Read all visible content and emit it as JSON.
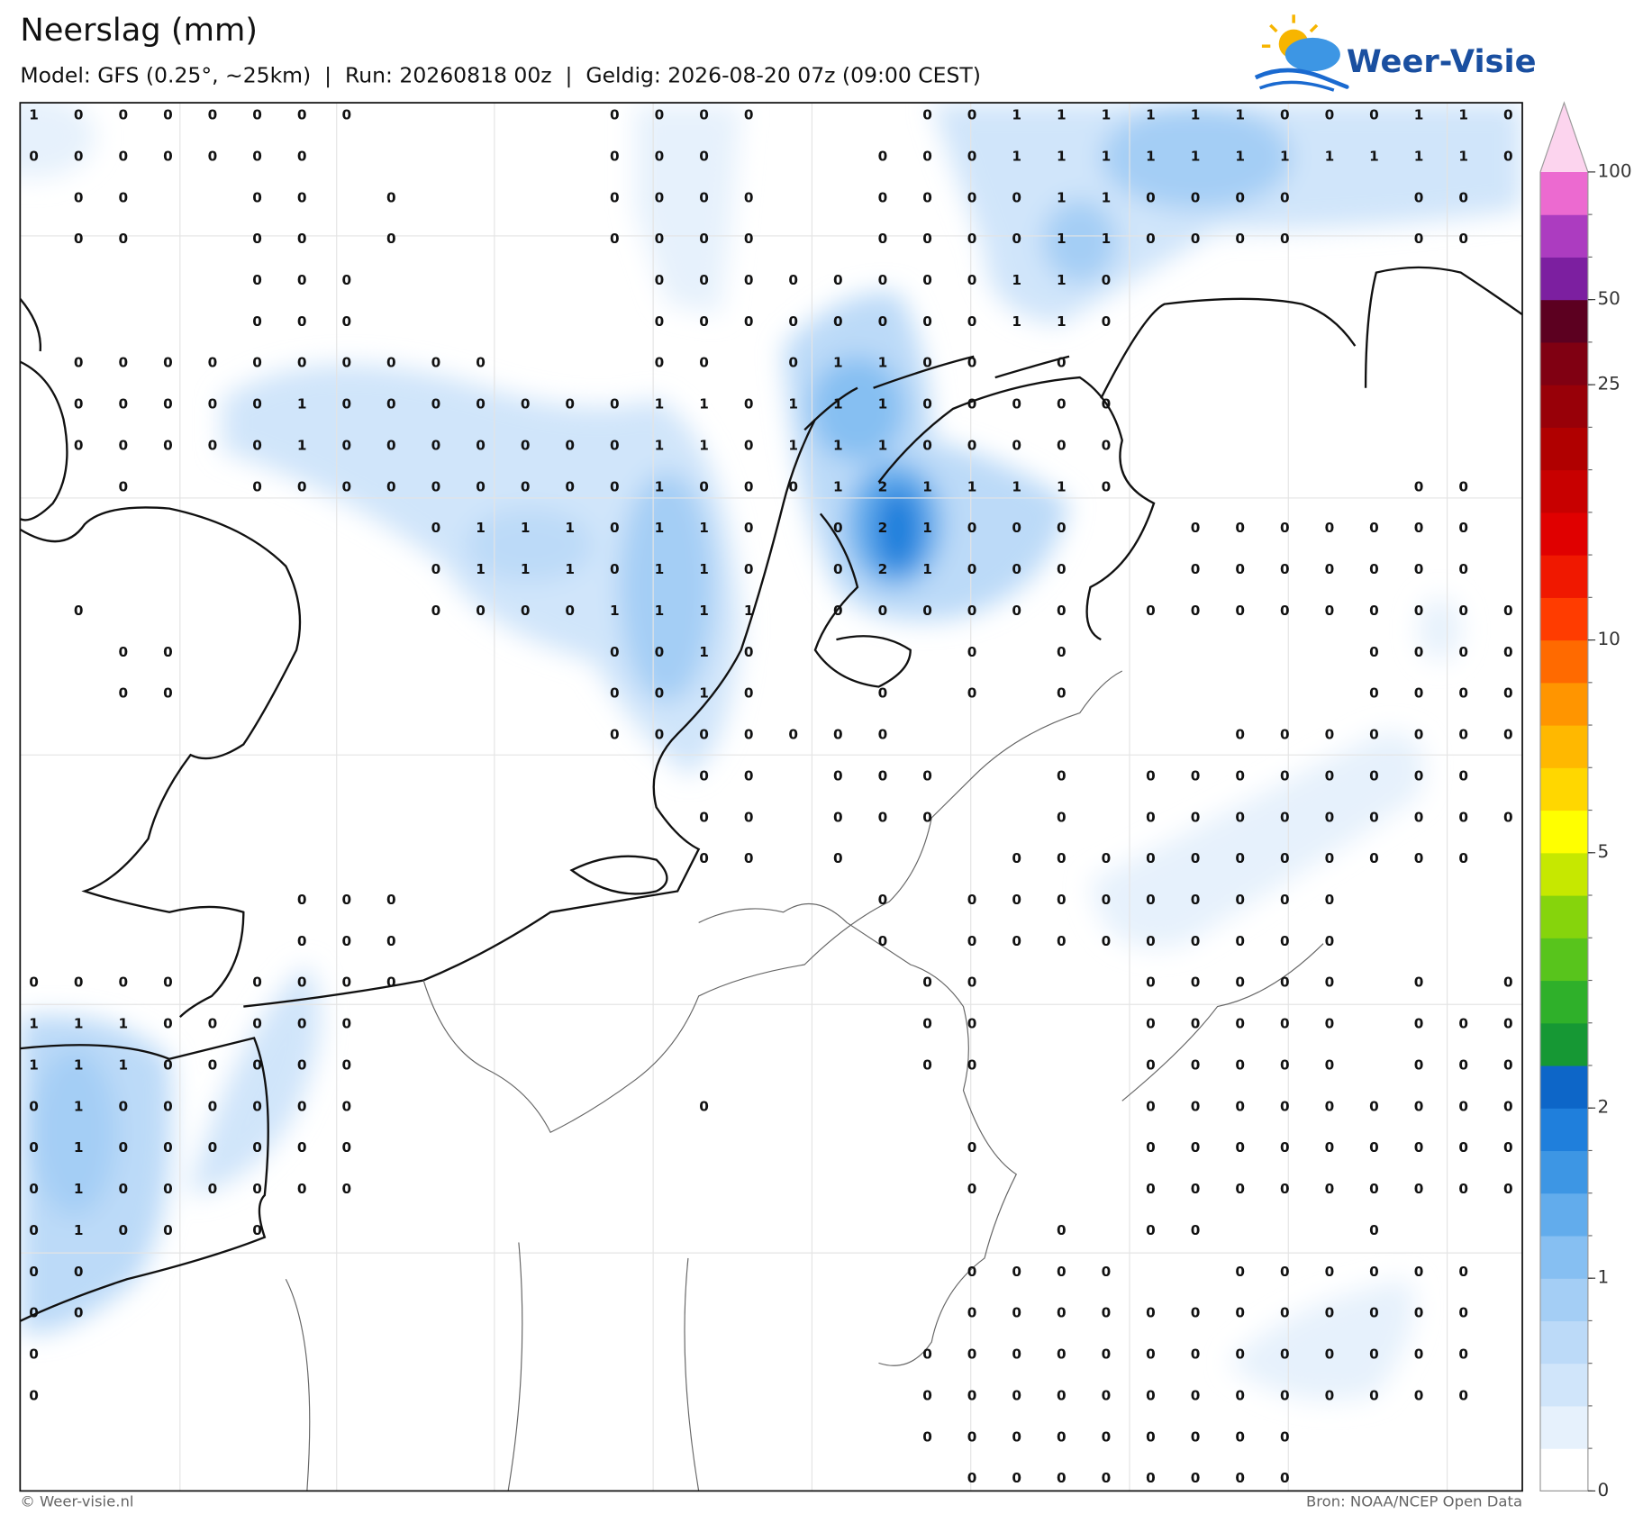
{
  "header": {
    "title": "Neerslag (mm)",
    "subtitle": "Model: GFS (0.25°, ~25km)  |  Run: 20260818 00z  |  Geldig: 2026-08-20 07z (09:00 CEST)",
    "logo": "Weer-Visie"
  },
  "colorbar": {
    "ticks": [
      0,
      1,
      2,
      5,
      10,
      25,
      50,
      100
    ],
    "colors": [
      "#ffffff",
      "#e6f1fc",
      "#d0e5fa",
      "#bcdaf8",
      "#a4cef5",
      "#86bff2",
      "#62acec",
      "#3d96e4",
      "#1f7fdc",
      "#0d66c8",
      "#169834",
      "#2fb02a",
      "#58c41c",
      "#86d40c",
      "#c6e800",
      "#ffff00",
      "#ffd700",
      "#ffb800",
      "#ff9500",
      "#ff6a00",
      "#ff3c00",
      "#f01800",
      "#e00000",
      "#c80000",
      "#b00000",
      "#980008",
      "#800012",
      "#5c0020",
      "#7c1fa0",
      "#ac3cc0",
      "#ec6ad0"
    ],
    "extend_color": "#fcd4ee"
  },
  "grid": {
    "rows": [
      [
        1,
        0,
        0,
        0,
        0,
        0,
        0,
        0,
        null,
        null,
        null,
        null,
        null,
        0,
        0,
        0,
        0,
        null,
        null,
        null,
        0,
        0,
        1,
        1,
        1,
        1,
        1,
        1,
        0,
        0,
        0,
        1,
        1,
        0
      ],
      [
        0,
        0,
        0,
        0,
        0,
        0,
        0,
        null,
        null,
        null,
        null,
        null,
        null,
        0,
        0,
        0,
        null,
        null,
        null,
        0,
        0,
        0,
        1,
        1,
        1,
        1,
        1,
        1,
        1,
        1,
        1,
        1,
        1,
        0
      ],
      [
        null,
        0,
        0,
        null,
        null,
        0,
        0,
        null,
        0,
        null,
        null,
        null,
        null,
        0,
        0,
        0,
        0,
        null,
        null,
        0,
        0,
        0,
        0,
        1,
        1,
        0,
        0,
        0,
        0,
        null,
        null,
        0,
        0,
        null
      ],
      [
        null,
        0,
        0,
        null,
        null,
        0,
        0,
        null,
        0,
        null,
        null,
        null,
        null,
        0,
        0,
        0,
        0,
        null,
        null,
        0,
        0,
        0,
        0,
        1,
        1,
        0,
        0,
        0,
        0,
        null,
        null,
        0,
        0,
        null
      ],
      [
        null,
        null,
        null,
        null,
        null,
        0,
        0,
        0,
        null,
        null,
        null,
        null,
        null,
        null,
        0,
        0,
        0,
        0,
        0,
        0,
        0,
        0,
        1,
        1,
        0,
        null,
        null,
        null,
        null,
        null,
        null,
        null,
        null,
        null
      ],
      [
        null,
        null,
        null,
        null,
        null,
        0,
        0,
        0,
        null,
        null,
        null,
        null,
        null,
        null,
        0,
        0,
        0,
        0,
        0,
        0,
        0,
        0,
        1,
        1,
        0,
        null,
        null,
        null,
        null,
        null,
        null,
        null,
        null,
        null
      ],
      [
        null,
        0,
        0,
        0,
        0,
        0,
        0,
        0,
        0,
        0,
        0,
        null,
        null,
        null,
        0,
        0,
        null,
        0,
        1,
        1,
        0,
        0,
        null,
        0,
        null,
        null,
        null,
        null,
        null,
        null,
        null,
        null,
        null,
        null
      ],
      [
        null,
        0,
        0,
        0,
        0,
        0,
        1,
        0,
        0,
        0,
        0,
        0,
        0,
        0,
        1,
        1,
        0,
        1,
        1,
        1,
        0,
        0,
        0,
        0,
        0,
        null,
        null,
        null,
        null,
        null,
        null,
        null,
        null,
        null
      ],
      [
        null,
        0,
        0,
        0,
        0,
        0,
        1,
        0,
        0,
        0,
        0,
        0,
        0,
        0,
        1,
        1,
        0,
        1,
        1,
        1,
        0,
        0,
        0,
        0,
        0,
        null,
        null,
        null,
        null,
        null,
        null,
        null,
        null,
        null
      ],
      [
        null,
        null,
        0,
        null,
        null,
        0,
        0,
        0,
        0,
        0,
        0,
        0,
        0,
        0,
        1,
        0,
        0,
        0,
        1,
        2,
        1,
        1,
        1,
        1,
        0,
        null,
        null,
        null,
        null,
        null,
        null,
        0,
        0,
        null
      ],
      [
        null,
        null,
        null,
        null,
        null,
        null,
        null,
        null,
        null,
        0,
        1,
        1,
        1,
        0,
        1,
        1,
        0,
        null,
        0,
        2,
        1,
        0,
        0,
        0,
        null,
        null,
        0,
        0,
        0,
        0,
        0,
        0,
        0,
        null
      ],
      [
        null,
        null,
        null,
        null,
        null,
        null,
        null,
        null,
        null,
        0,
        1,
        1,
        1,
        0,
        1,
        1,
        0,
        null,
        0,
        2,
        1,
        0,
        0,
        0,
        null,
        null,
        0,
        0,
        0,
        0,
        0,
        0,
        0,
        null
      ],
      [
        null,
        0,
        null,
        null,
        null,
        null,
        null,
        null,
        null,
        0,
        0,
        0,
        0,
        1,
        1,
        1,
        1,
        null,
        0,
        0,
        0,
        0,
        0,
        0,
        null,
        0,
        0,
        0,
        0,
        0,
        0,
        0,
        0,
        0
      ],
      [
        null,
        null,
        0,
        0,
        null,
        null,
        null,
        null,
        null,
        null,
        null,
        null,
        null,
        0,
        0,
        1,
        0,
        null,
        null,
        null,
        null,
        0,
        null,
        0,
        null,
        null,
        null,
        null,
        null,
        null,
        0,
        0,
        0,
        0
      ],
      [
        null,
        null,
        0,
        0,
        null,
        null,
        null,
        null,
        null,
        null,
        null,
        null,
        null,
        0,
        0,
        1,
        0,
        null,
        null,
        0,
        null,
        0,
        null,
        0,
        null,
        null,
        null,
        null,
        null,
        null,
        0,
        0,
        0,
        0
      ],
      [
        null,
        null,
        null,
        null,
        null,
        null,
        null,
        null,
        null,
        null,
        null,
        null,
        null,
        0,
        0,
        0,
        0,
        0,
        0,
        0,
        null,
        null,
        null,
        null,
        null,
        null,
        null,
        0,
        0,
        0,
        0,
        0,
        0,
        0
      ],
      [
        null,
        null,
        null,
        null,
        null,
        null,
        null,
        null,
        null,
        null,
        null,
        null,
        null,
        null,
        null,
        0,
        0,
        null,
        0,
        0,
        0,
        null,
        null,
        0,
        null,
        0,
        0,
        0,
        0,
        0,
        0,
        0,
        0,
        null
      ],
      [
        null,
        null,
        null,
        null,
        null,
        null,
        null,
        null,
        null,
        null,
        null,
        null,
        null,
        null,
        null,
        0,
        0,
        null,
        0,
        0,
        0,
        null,
        null,
        0,
        null,
        0,
        0,
        0,
        0,
        0,
        0,
        0,
        0,
        0
      ],
      [
        null,
        null,
        null,
        null,
        null,
        null,
        null,
        null,
        null,
        null,
        null,
        null,
        null,
        null,
        null,
        0,
        0,
        null,
        0,
        null,
        null,
        null,
        0,
        0,
        0,
        0,
        0,
        0,
        0,
        0,
        0,
        0,
        0,
        null
      ],
      [
        null,
        null,
        null,
        null,
        null,
        null,
        0,
        0,
        0,
        null,
        null,
        null,
        null,
        null,
        null,
        null,
        null,
        null,
        null,
        0,
        null,
        0,
        0,
        0,
        0,
        0,
        0,
        0,
        0,
        0,
        null,
        null,
        null,
        null
      ],
      [
        null,
        null,
        null,
        null,
        null,
        null,
        0,
        0,
        0,
        null,
        null,
        null,
        null,
        null,
        null,
        null,
        null,
        null,
        null,
        0,
        null,
        0,
        0,
        0,
        0,
        0,
        0,
        0,
        0,
        0,
        null,
        null,
        null,
        null
      ],
      [
        0,
        0,
        0,
        0,
        null,
        0,
        0,
        0,
        0,
        null,
        null,
        null,
        null,
        null,
        null,
        null,
        null,
        null,
        null,
        null,
        0,
        0,
        null,
        null,
        null,
        0,
        0,
        0,
        0,
        0,
        null,
        0,
        null,
        0
      ],
      [
        1,
        1,
        1,
        0,
        0,
        0,
        0,
        0,
        null,
        null,
        null,
        null,
        null,
        null,
        null,
        null,
        null,
        null,
        null,
        null,
        0,
        0,
        null,
        null,
        null,
        0,
        0,
        0,
        0,
        0,
        null,
        0,
        0,
        0
      ],
      [
        1,
        1,
        1,
        0,
        0,
        0,
        0,
        0,
        null,
        null,
        null,
        null,
        null,
        null,
        null,
        null,
        null,
        null,
        null,
        null,
        0,
        0,
        null,
        null,
        null,
        0,
        0,
        0,
        0,
        0,
        null,
        0,
        0,
        0
      ],
      [
        0,
        1,
        0,
        0,
        0,
        0,
        0,
        0,
        null,
        null,
        null,
        null,
        null,
        null,
        null,
        0,
        null,
        null,
        null,
        null,
        null,
        null,
        null,
        null,
        null,
        0,
        0,
        0,
        0,
        0,
        0,
        0,
        0,
        0
      ],
      [
        0,
        1,
        0,
        0,
        0,
        0,
        0,
        0,
        null,
        null,
        null,
        null,
        null,
        null,
        null,
        null,
        null,
        null,
        null,
        null,
        null,
        0,
        null,
        null,
        null,
        0,
        0,
        0,
        0,
        0,
        0,
        0,
        0,
        0
      ],
      [
        0,
        1,
        0,
        0,
        0,
        0,
        0,
        0,
        null,
        null,
        null,
        null,
        null,
        null,
        null,
        null,
        null,
        null,
        null,
        null,
        null,
        0,
        null,
        null,
        null,
        0,
        0,
        0,
        0,
        0,
        0,
        0,
        0,
        0
      ],
      [
        0,
        1,
        0,
        0,
        null,
        0,
        null,
        null,
        null,
        null,
        null,
        null,
        null,
        null,
        null,
        null,
        null,
        null,
        null,
        null,
        null,
        null,
        null,
        0,
        null,
        0,
        0,
        null,
        null,
        null,
        0,
        null,
        null,
        null
      ],
      [
        0,
        0,
        null,
        null,
        null,
        null,
        null,
        null,
        null,
        null,
        null,
        null,
        null,
        null,
        null,
        null,
        null,
        null,
        null,
        null,
        null,
        0,
        0,
        0,
        0,
        null,
        null,
        0,
        0,
        0,
        0,
        0,
        0,
        null
      ],
      [
        0,
        0,
        null,
        null,
        null,
        null,
        null,
        null,
        null,
        null,
        null,
        null,
        null,
        null,
        null,
        null,
        null,
        null,
        null,
        null,
        null,
        0,
        0,
        0,
        0,
        0,
        0,
        0,
        0,
        0,
        0,
        0,
        0,
        null
      ],
      [
        0,
        null,
        null,
        null,
        null,
        null,
        null,
        null,
        null,
        null,
        null,
        null,
        null,
        null,
        null,
        null,
        null,
        null,
        null,
        null,
        0,
        0,
        0,
        0,
        0,
        0,
        0,
        0,
        0,
        0,
        0,
        0,
        0,
        null
      ],
      [
        0,
        null,
        null,
        null,
        null,
        null,
        null,
        null,
        null,
        null,
        null,
        null,
        null,
        null,
        null,
        null,
        null,
        null,
        null,
        null,
        0,
        0,
        0,
        0,
        0,
        0,
        0,
        0,
        0,
        0,
        0,
        0,
        0,
        null
      ],
      [
        null,
        null,
        null,
        null,
        null,
        null,
        null,
        null,
        null,
        null,
        null,
        null,
        null,
        null,
        null,
        null,
        null,
        null,
        null,
        null,
        0,
        0,
        0,
        0,
        0,
        0,
        0,
        0,
        0,
        null,
        null,
        null,
        null,
        null
      ],
      [
        null,
        null,
        null,
        null,
        null,
        null,
        null,
        null,
        null,
        null,
        null,
        null,
        null,
        null,
        null,
        null,
        null,
        null,
        null,
        null,
        null,
        0,
        0,
        0,
        0,
        0,
        0,
        0,
        0,
        null,
        null,
        null,
        null,
        null
      ]
    ]
  },
  "footer": {
    "left": "© Weer-visie.nl",
    "right": "Bron: NOAA/NCEP Open Data"
  }
}
